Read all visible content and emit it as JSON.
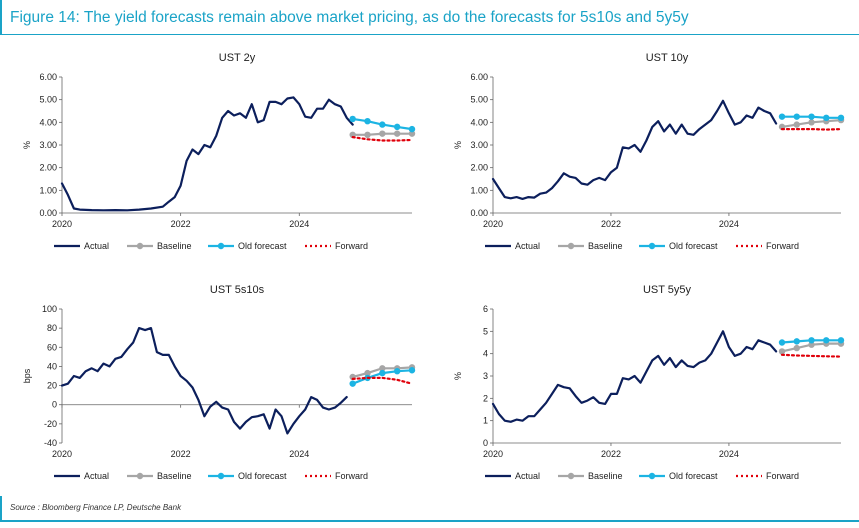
{
  "title": "Figure 14: The yield forecasts remain above market pricing, as do the forecasts for 5s10s and 5y5y",
  "source": "Source : Bloomberg Finance LP, Deutsche Bank",
  "colors": {
    "accent": "#1aa3c7",
    "actual": "#0c1f5c",
    "baseline": "#a6a6a6",
    "old_forecast": "#1cb4e3",
    "forward": "#e0000a"
  },
  "chart_data": [
    {
      "type": "line",
      "title": "UST 2y",
      "ylabel": "%",
      "ylim": [
        0,
        6
      ],
      "xlim": [
        2020,
        2025.9
      ],
      "yticks": [
        "0.00",
        "1.00",
        "2.00",
        "3.00",
        "4.00",
        "5.00",
        "6.00"
      ],
      "xticks": [
        "2020",
        "2022",
        "2024"
      ],
      "legend": [
        "Actual",
        "Baseline",
        "Old forecast",
        "Forward"
      ],
      "legend_position": "bottom",
      "series": [
        {
          "name": "Actual",
          "x": [
            2020.0,
            2020.1,
            2020.2,
            2020.3,
            2020.5,
            2020.7,
            2020.9,
            2021.1,
            2021.3,
            2021.5,
            2021.7,
            2021.8,
            2021.9,
            2022.0,
            2022.1,
            2022.2,
            2022.3,
            2022.4,
            2022.5,
            2022.6,
            2022.7,
            2022.8,
            2022.9,
            2023.0,
            2023.1,
            2023.2,
            2023.3,
            2023.4,
            2023.5,
            2023.6,
            2023.7,
            2023.8,
            2023.9,
            2024.0,
            2024.1,
            2024.2,
            2024.3,
            2024.4,
            2024.5,
            2024.6,
            2024.7,
            2024.8,
            2024.9
          ],
          "values": [
            1.3,
            0.8,
            0.2,
            0.15,
            0.13,
            0.12,
            0.13,
            0.12,
            0.15,
            0.2,
            0.28,
            0.5,
            0.7,
            1.2,
            2.3,
            2.8,
            2.6,
            3.0,
            2.9,
            3.4,
            4.2,
            4.5,
            4.3,
            4.4,
            4.2,
            4.8,
            4.0,
            4.1,
            4.9,
            4.9,
            4.8,
            5.05,
            5.1,
            4.8,
            4.25,
            4.2,
            4.6,
            4.6,
            5.0,
            4.8,
            4.7,
            4.2,
            3.9
          ]
        },
        {
          "name": "Baseline",
          "x": [
            2024.9,
            2025.15,
            2025.4,
            2025.65,
            2025.9
          ],
          "values": [
            3.45,
            3.45,
            3.5,
            3.5,
            3.5
          ]
        },
        {
          "name": "Old forecast",
          "x": [
            2024.9,
            2025.15,
            2025.4,
            2025.65,
            2025.9
          ],
          "values": [
            4.15,
            4.05,
            3.9,
            3.8,
            3.7
          ]
        },
        {
          "name": "Forward",
          "x": [
            2024.9,
            2025.15,
            2025.4,
            2025.65,
            2025.9
          ],
          "values": [
            3.35,
            3.25,
            3.2,
            3.2,
            3.22
          ]
        }
      ]
    },
    {
      "type": "line",
      "title": "UST 10y",
      "ylabel": "%",
      "ylim": [
        0,
        6
      ],
      "xlim": [
        2020,
        2025.9
      ],
      "yticks": [
        "0.00",
        "1.00",
        "2.00",
        "3.00",
        "4.00",
        "5.00",
        "6.00"
      ],
      "xticks": [
        "2020",
        "2022",
        "2024"
      ],
      "legend": [
        "Actual",
        "Baseline",
        "Old forecast",
        "Forward"
      ],
      "legend_position": "bottom",
      "series": [
        {
          "name": "Actual",
          "x": [
            2020.0,
            2020.1,
            2020.2,
            2020.3,
            2020.4,
            2020.5,
            2020.6,
            2020.7,
            2020.8,
            2020.9,
            2021.0,
            2021.1,
            2021.2,
            2021.3,
            2021.4,
            2021.5,
            2021.6,
            2021.7,
            2021.8,
            2021.9,
            2022.0,
            2022.1,
            2022.2,
            2022.3,
            2022.4,
            2022.5,
            2022.6,
            2022.7,
            2022.8,
            2022.9,
            2023.0,
            2023.1,
            2023.2,
            2023.3,
            2023.4,
            2023.5,
            2023.6,
            2023.7,
            2023.8,
            2023.9,
            2024.0,
            2024.1,
            2024.2,
            2024.3,
            2024.4,
            2024.5,
            2024.6,
            2024.7,
            2024.8
          ],
          "values": [
            1.5,
            1.1,
            0.7,
            0.65,
            0.7,
            0.62,
            0.7,
            0.68,
            0.85,
            0.9,
            1.1,
            1.4,
            1.75,
            1.6,
            1.55,
            1.3,
            1.25,
            1.45,
            1.55,
            1.45,
            1.8,
            2.0,
            2.9,
            2.85,
            3.0,
            2.7,
            3.2,
            3.8,
            4.05,
            3.6,
            3.9,
            3.5,
            3.9,
            3.5,
            3.45,
            3.7,
            3.9,
            4.1,
            4.5,
            4.95,
            4.4,
            3.9,
            4.0,
            4.3,
            4.2,
            4.65,
            4.5,
            4.4,
            3.95
          ]
        },
        {
          "name": "Baseline",
          "x": [
            2024.9,
            2025.15,
            2025.4,
            2025.65,
            2025.9
          ],
          "values": [
            3.8,
            3.9,
            4.0,
            4.05,
            4.1
          ]
        },
        {
          "name": "Old forecast",
          "x": [
            2024.9,
            2025.15,
            2025.4,
            2025.65,
            2025.9
          ],
          "values": [
            4.25,
            4.25,
            4.25,
            4.2,
            4.2
          ]
        },
        {
          "name": "Forward",
          "x": [
            2024.9,
            2025.15,
            2025.4,
            2025.65,
            2025.9
          ],
          "values": [
            3.7,
            3.7,
            3.7,
            3.68,
            3.7
          ]
        }
      ]
    },
    {
      "type": "line",
      "title": "UST 5s10s",
      "ylabel": "bps",
      "ylim": [
        -40,
        100
      ],
      "xlim": [
        2020,
        2025.9
      ],
      "yticks": [
        "-40",
        "-20",
        "0",
        "20",
        "40",
        "60",
        "80",
        "100"
      ],
      "xticks": [
        "2020",
        "2022",
        "2024"
      ],
      "legend": [
        "Actual",
        "Baseline",
        "Old forecast",
        "Forward"
      ],
      "legend_position": "bottom",
      "series": [
        {
          "name": "Actual",
          "x": [
            2020.0,
            2020.1,
            2020.2,
            2020.3,
            2020.4,
            2020.5,
            2020.6,
            2020.7,
            2020.8,
            2020.9,
            2021.0,
            2021.1,
            2021.2,
            2021.3,
            2021.4,
            2021.5,
            2021.6,
            2021.7,
            2021.8,
            2021.9,
            2022.0,
            2022.1,
            2022.2,
            2022.3,
            2022.4,
            2022.5,
            2022.6,
            2022.7,
            2022.8,
            2022.9,
            2023.0,
            2023.1,
            2023.2,
            2023.3,
            2023.4,
            2023.5,
            2023.6,
            2023.7,
            2023.8,
            2023.9,
            2024.0,
            2024.1,
            2024.2,
            2024.3,
            2024.4,
            2024.5,
            2024.6,
            2024.7,
            2024.8
          ],
          "values": [
            20,
            22,
            30,
            28,
            35,
            38,
            35,
            43,
            40,
            48,
            50,
            58,
            65,
            80,
            78,
            80,
            55,
            52,
            52,
            40,
            30,
            25,
            18,
            5,
            -12,
            -2,
            3,
            -3,
            -5,
            -18,
            -25,
            -18,
            -13,
            -12,
            -10,
            -25,
            -5,
            -12,
            -30,
            -20,
            -12,
            -5,
            8,
            5,
            -3,
            -5,
            -3,
            2,
            8
          ]
        },
        {
          "name": "Baseline",
          "x": [
            2024.9,
            2025.15,
            2025.4,
            2025.65,
            2025.9
          ],
          "values": [
            29,
            33,
            38,
            38,
            39
          ]
        },
        {
          "name": "Old forecast",
          "x": [
            2024.9,
            2025.15,
            2025.4,
            2025.65,
            2025.9
          ],
          "values": [
            22,
            28,
            33,
            35,
            36
          ]
        },
        {
          "name": "Forward",
          "x": [
            2024.9,
            2025.15,
            2025.4,
            2025.65,
            2025.9
          ],
          "values": [
            27,
            28,
            28,
            26,
            22
          ]
        }
      ]
    },
    {
      "type": "line",
      "title": "UST 5y5y",
      "ylabel": "%",
      "ylim": [
        0,
        6
      ],
      "xlim": [
        2020,
        2025.9
      ],
      "yticks": [
        "0",
        "1",
        "2",
        "3",
        "4",
        "5",
        "6"
      ],
      "xticks": [
        "2020",
        "2022",
        "2024"
      ],
      "legend": [
        "Actual",
        "Baseline",
        "Old forecast",
        "Forward"
      ],
      "legend_position": "bottom",
      "series": [
        {
          "name": "Actual",
          "x": [
            2020.0,
            2020.1,
            2020.2,
            2020.3,
            2020.4,
            2020.5,
            2020.6,
            2020.7,
            2020.8,
            2020.9,
            2021.0,
            2021.1,
            2021.2,
            2021.3,
            2021.4,
            2021.5,
            2021.6,
            2021.7,
            2021.8,
            2021.9,
            2022.0,
            2022.1,
            2022.2,
            2022.3,
            2022.4,
            2022.5,
            2022.6,
            2022.7,
            2022.8,
            2022.9,
            2023.0,
            2023.1,
            2023.2,
            2023.3,
            2023.4,
            2023.5,
            2023.6,
            2023.7,
            2023.8,
            2023.9,
            2024.0,
            2024.1,
            2024.2,
            2024.3,
            2024.4,
            2024.5,
            2024.6,
            2024.7,
            2024.8
          ],
          "values": [
            1.75,
            1.3,
            1.0,
            0.95,
            1.05,
            1.0,
            1.2,
            1.2,
            1.5,
            1.8,
            2.2,
            2.6,
            2.5,
            2.45,
            2.1,
            1.8,
            1.9,
            2.05,
            1.8,
            1.75,
            2.2,
            2.2,
            2.9,
            2.85,
            3.0,
            2.7,
            3.2,
            3.7,
            3.9,
            3.5,
            3.8,
            3.4,
            3.7,
            3.45,
            3.4,
            3.6,
            3.7,
            4.0,
            4.5,
            5.0,
            4.3,
            3.9,
            4.0,
            4.3,
            4.2,
            4.6,
            4.5,
            4.4,
            4.1
          ]
        },
        {
          "name": "Baseline",
          "x": [
            2024.9,
            2025.15,
            2025.4,
            2025.65,
            2025.9
          ],
          "values": [
            4.1,
            4.25,
            4.4,
            4.45,
            4.45
          ]
        },
        {
          "name": "Old forecast",
          "x": [
            2024.9,
            2025.15,
            2025.4,
            2025.65,
            2025.9
          ],
          "values": [
            4.5,
            4.55,
            4.6,
            4.6,
            4.6
          ]
        },
        {
          "name": "Forward",
          "x": [
            2024.9,
            2025.15,
            2025.4,
            2025.65,
            2025.9
          ],
          "values": [
            3.95,
            3.92,
            3.9,
            3.88,
            3.87
          ]
        }
      ]
    }
  ]
}
